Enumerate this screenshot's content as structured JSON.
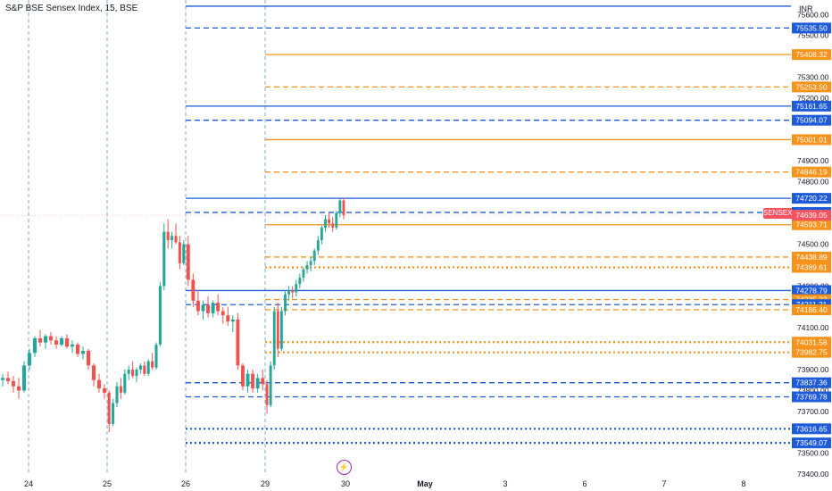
{
  "header": {
    "title": "S&P BSE Sensex Index, 15, BSE",
    "currency": "INR",
    "symbol_badge": "SENSEX"
  },
  "colors": {
    "up": "#26a69a",
    "down": "#ef5350",
    "blue_level": "#1e5bd8",
    "orange_level": "#f7931a",
    "session_line": "#5b9bd5",
    "price_badge": "#f7525f"
  },
  "icons": {
    "replay": "lightning-bolt-icon"
  },
  "chart_data": {
    "type": "candlestick",
    "title": "S&P BSE Sensex Index, 15, BSE",
    "ylim": [
      73370,
      75630
    ],
    "y_ticks": [
      73400,
      73500,
      73700,
      73800,
      73900,
      74000,
      74100,
      74200,
      74300,
      74500,
      74600,
      74800,
      74900,
      75100,
      75200,
      75300,
      75400,
      75500,
      75600
    ],
    "x_tick_labels": [
      "24",
      "25",
      "26",
      "29",
      "30",
      "May",
      "3",
      "6",
      "7",
      "8"
    ],
    "session_markers": [
      "24",
      "25",
      "26",
      "29"
    ],
    "last_price": "74639.05",
    "levels": [
      {
        "price": 75640,
        "label": "",
        "color": "blue",
        "style": "solid",
        "from": "26"
      },
      {
        "price": 75535.5,
        "label": "75535.50",
        "color": "blue",
        "style": "dashed",
        "from": "26"
      },
      {
        "price": 75408.32,
        "label": "75408.32",
        "color": "orange",
        "style": "solid",
        "from": "29"
      },
      {
        "price": 75253.5,
        "label": "75253.50",
        "color": "orange",
        "style": "dashed",
        "from": "29"
      },
      {
        "price": 75161.65,
        "label": "75161.65",
        "color": "blue",
        "style": "solid",
        "from": "26"
      },
      {
        "price": 75094.07,
        "label": "75094.07",
        "color": "blue",
        "style": "dashed",
        "from": "26"
      },
      {
        "price": 75001.01,
        "label": "75001.01",
        "color": "orange",
        "style": "solid",
        "from": "29"
      },
      {
        "price": 74846.19,
        "label": "74846.19",
        "color": "orange",
        "style": "dashed",
        "from": "29"
      },
      {
        "price": 74720.22,
        "label": "74720.22",
        "color": "blue",
        "style": "solid",
        "from": "26"
      },
      {
        "price": 74652.64,
        "label": "74652.64",
        "color": "blue",
        "style": "dashed",
        "from": "26"
      },
      {
        "price": 74593.71,
        "label": "74593.71",
        "color": "orange",
        "style": "solid",
        "from": "29"
      },
      {
        "price": 74438.89,
        "label": "74438.89",
        "color": "orange",
        "style": "dashed",
        "from": "29"
      },
      {
        "price": 74389.61,
        "label": "74389.61",
        "color": "orange",
        "style": "dotted",
        "from": "29"
      },
      {
        "price": 74278.79,
        "label": "74278.79",
        "color": "blue",
        "style": "solid",
        "from": "26"
      },
      {
        "price": 74235.23,
        "label": "74235.23",
        "color": "orange",
        "style": "dashed",
        "from": "29"
      },
      {
        "price": 74211.21,
        "label": "74211.21",
        "color": "blue",
        "style": "dashed",
        "from": "26"
      },
      {
        "price": 74186.4,
        "label": "74186.40",
        "color": "orange",
        "style": "dashed",
        "from": "29"
      },
      {
        "price": 74031.58,
        "label": "74031.58",
        "color": "orange",
        "style": "dotted",
        "from": "29"
      },
      {
        "price": 73982.75,
        "label": "73982.75",
        "color": "orange",
        "style": "dotted",
        "from": "29"
      },
      {
        "price": 73837.36,
        "label": "73837.36",
        "color": "blue",
        "style": "dashed",
        "from": "26"
      },
      {
        "price": 73769.78,
        "label": "73769.78",
        "color": "blue",
        "style": "dashed",
        "from": "26"
      },
      {
        "price": 73616.65,
        "label": "73616.65",
        "color": "blue",
        "style": "dotted",
        "from": "26"
      },
      {
        "price": 73549.07,
        "label": "73549.07",
        "color": "blue",
        "style": "dotted",
        "from": "26"
      }
    ],
    "candles": [
      {
        "day": "24",
        "o": 73850,
        "h": 73880,
        "l": 73820,
        "c": 73860
      },
      {
        "day": "24",
        "o": 73860,
        "h": 73890,
        "l": 73830,
        "c": 73845
      },
      {
        "day": "24",
        "o": 73845,
        "h": 73870,
        "l": 73790,
        "c": 73820
      },
      {
        "day": "24",
        "o": 73820,
        "h": 73860,
        "l": 73760,
        "c": 73800
      },
      {
        "day": "24",
        "o": 73800,
        "h": 73940,
        "l": 73790,
        "c": 73920
      },
      {
        "day": "24",
        "o": 73920,
        "h": 74000,
        "l": 73900,
        "c": 73980
      },
      {
        "day": "24",
        "o": 73980,
        "h": 74060,
        "l": 73960,
        "c": 74050
      },
      {
        "day": "24",
        "o": 74050,
        "h": 74090,
        "l": 74010,
        "c": 74030
      },
      {
        "day": "24",
        "o": 74030,
        "h": 74070,
        "l": 74000,
        "c": 74060
      },
      {
        "day": "24",
        "o": 74060,
        "h": 74080,
        "l": 74020,
        "c": 74040
      },
      {
        "day": "24",
        "o": 74040,
        "h": 74060,
        "l": 74000,
        "c": 74020
      },
      {
        "day": "24",
        "o": 74020,
        "h": 74060,
        "l": 74010,
        "c": 74050
      },
      {
        "day": "24",
        "o": 74050,
        "h": 74070,
        "l": 74000,
        "c": 74010
      },
      {
        "day": "24",
        "o": 74010,
        "h": 74040,
        "l": 73980,
        "c": 74020
      },
      {
        "day": "24",
        "o": 74020,
        "h": 74030,
        "l": 73960,
        "c": 73975
      },
      {
        "day": "24",
        "o": 73975,
        "h": 74010,
        "l": 73950,
        "c": 73990
      },
      {
        "day": "24",
        "o": 73990,
        "h": 74000,
        "l": 73900,
        "c": 73920
      },
      {
        "day": "24",
        "o": 73920,
        "h": 73930,
        "l": 73820,
        "c": 73850
      },
      {
        "day": "24",
        "o": 73850,
        "h": 73880,
        "l": 73790,
        "c": 73810
      },
      {
        "day": "24",
        "o": 73810,
        "h": 73830,
        "l": 73760,
        "c": 73790
      },
      {
        "day": "25",
        "o": 73790,
        "h": 73800,
        "l": 73600,
        "c": 73640
      },
      {
        "day": "25",
        "o": 73640,
        "h": 73760,
        "l": 73630,
        "c": 73740
      },
      {
        "day": "25",
        "o": 73740,
        "h": 73840,
        "l": 73720,
        "c": 73820
      },
      {
        "day": "25",
        "o": 73820,
        "h": 73860,
        "l": 73760,
        "c": 73790
      },
      {
        "day": "25",
        "o": 73790,
        "h": 73900,
        "l": 73780,
        "c": 73880
      },
      {
        "day": "25",
        "o": 73880,
        "h": 73920,
        "l": 73850,
        "c": 73900
      },
      {
        "day": "25",
        "o": 73900,
        "h": 73940,
        "l": 73860,
        "c": 73870
      },
      {
        "day": "25",
        "o": 73870,
        "h": 73910,
        "l": 73840,
        "c": 73900
      },
      {
        "day": "25",
        "o": 73900,
        "h": 73930,
        "l": 73880,
        "c": 73920
      },
      {
        "day": "25",
        "o": 73920,
        "h": 73940,
        "l": 73870,
        "c": 73880
      },
      {
        "day": "25",
        "o": 73880,
        "h": 73950,
        "l": 73870,
        "c": 73940
      },
      {
        "day": "25",
        "o": 73940,
        "h": 73980,
        "l": 73900,
        "c": 73910
      },
      {
        "day": "25",
        "o": 73910,
        "h": 74030,
        "l": 73900,
        "c": 74020
      },
      {
        "day": "25",
        "o": 74020,
        "h": 74320,
        "l": 74010,
        "c": 74300
      },
      {
        "day": "25",
        "o": 74300,
        "h": 74600,
        "l": 74280,
        "c": 74560
      },
      {
        "day": "25",
        "o": 74560,
        "h": 74620,
        "l": 74480,
        "c": 74520
      },
      {
        "day": "25",
        "o": 74520,
        "h": 74560,
        "l": 74480,
        "c": 74540
      },
      {
        "day": "25",
        "o": 74540,
        "h": 74600,
        "l": 74500,
        "c": 74510
      },
      {
        "day": "25",
        "o": 74510,
        "h": 74540,
        "l": 74380,
        "c": 74410
      },
      {
        "day": "25",
        "o": 74410,
        "h": 74520,
        "l": 74400,
        "c": 74500
      },
      {
        "day": "26",
        "o": 74500,
        "h": 74540,
        "l": 74300,
        "c": 74330
      },
      {
        "day": "26",
        "o": 74330,
        "h": 74360,
        "l": 74200,
        "c": 74230
      },
      {
        "day": "26",
        "o": 74230,
        "h": 74280,
        "l": 74160,
        "c": 74180
      },
      {
        "day": "26",
        "o": 74180,
        "h": 74230,
        "l": 74140,
        "c": 74210
      },
      {
        "day": "26",
        "o": 74210,
        "h": 74250,
        "l": 74150,
        "c": 74170
      },
      {
        "day": "26",
        "o": 74170,
        "h": 74230,
        "l": 74150,
        "c": 74220
      },
      {
        "day": "26",
        "o": 74220,
        "h": 74260,
        "l": 74160,
        "c": 74180
      },
      {
        "day": "26",
        "o": 74180,
        "h": 74200,
        "l": 74120,
        "c": 74160
      },
      {
        "day": "26",
        "o": 74160,
        "h": 74200,
        "l": 74110,
        "c": 74130
      },
      {
        "day": "26",
        "o": 74130,
        "h": 74160,
        "l": 74080,
        "c": 74140
      },
      {
        "day": "26",
        "o": 74140,
        "h": 74170,
        "l": 73900,
        "c": 73920
      },
      {
        "day": "26",
        "o": 73920,
        "h": 73930,
        "l": 73800,
        "c": 73820
      },
      {
        "day": "26",
        "o": 73820,
        "h": 73900,
        "l": 73790,
        "c": 73880
      },
      {
        "day": "26",
        "o": 73880,
        "h": 73900,
        "l": 73790,
        "c": 73810
      },
      {
        "day": "26",
        "o": 73810,
        "h": 73880,
        "l": 73790,
        "c": 73860
      },
      {
        "day": "26",
        "o": 73860,
        "h": 73900,
        "l": 73800,
        "c": 73830
      },
      {
        "day": "29",
        "o": 73830,
        "h": 73850,
        "l": 73690,
        "c": 73730
      },
      {
        "day": "29",
        "o": 73730,
        "h": 73940,
        "l": 73720,
        "c": 73920
      },
      {
        "day": "29",
        "o": 73920,
        "h": 74200,
        "l": 73900,
        "c": 74180
      },
      {
        "day": "29",
        "o": 74180,
        "h": 74220,
        "l": 73960,
        "c": 74000
      },
      {
        "day": "29",
        "o": 74000,
        "h": 74200,
        "l": 73990,
        "c": 74180
      },
      {
        "day": "29",
        "o": 74180,
        "h": 74280,
        "l": 74160,
        "c": 74260
      },
      {
        "day": "29",
        "o": 74260,
        "h": 74300,
        "l": 74230,
        "c": 74280
      },
      {
        "day": "29",
        "o": 74280,
        "h": 74300,
        "l": 74240,
        "c": 74270
      },
      {
        "day": "29",
        "o": 74270,
        "h": 74330,
        "l": 74250,
        "c": 74310
      },
      {
        "day": "29",
        "o": 74310,
        "h": 74360,
        "l": 74290,
        "c": 74340
      },
      {
        "day": "29",
        "o": 74340,
        "h": 74390,
        "l": 74320,
        "c": 74380
      },
      {
        "day": "29",
        "o": 74380,
        "h": 74420,
        "l": 74360,
        "c": 74400
      },
      {
        "day": "29",
        "o": 74400,
        "h": 74440,
        "l": 74370,
        "c": 74420
      },
      {
        "day": "29",
        "o": 74420,
        "h": 74480,
        "l": 74400,
        "c": 74470
      },
      {
        "day": "29",
        "o": 74470,
        "h": 74540,
        "l": 74450,
        "c": 74520
      },
      {
        "day": "29",
        "o": 74520,
        "h": 74590,
        "l": 74500,
        "c": 74580
      },
      {
        "day": "29",
        "o": 74580,
        "h": 74640,
        "l": 74560,
        "c": 74620
      },
      {
        "day": "29",
        "o": 74620,
        "h": 74650,
        "l": 74580,
        "c": 74600
      },
      {
        "day": "29",
        "o": 74600,
        "h": 74630,
        "l": 74560,
        "c": 74580
      },
      {
        "day": "29",
        "o": 74580,
        "h": 74660,
        "l": 74570,
        "c": 74650
      },
      {
        "day": "29",
        "o": 74650,
        "h": 74720,
        "l": 74630,
        "c": 74710
      },
      {
        "day": "29",
        "o": 74710,
        "h": 74720,
        "l": 74620,
        "c": 74639.05
      }
    ]
  }
}
